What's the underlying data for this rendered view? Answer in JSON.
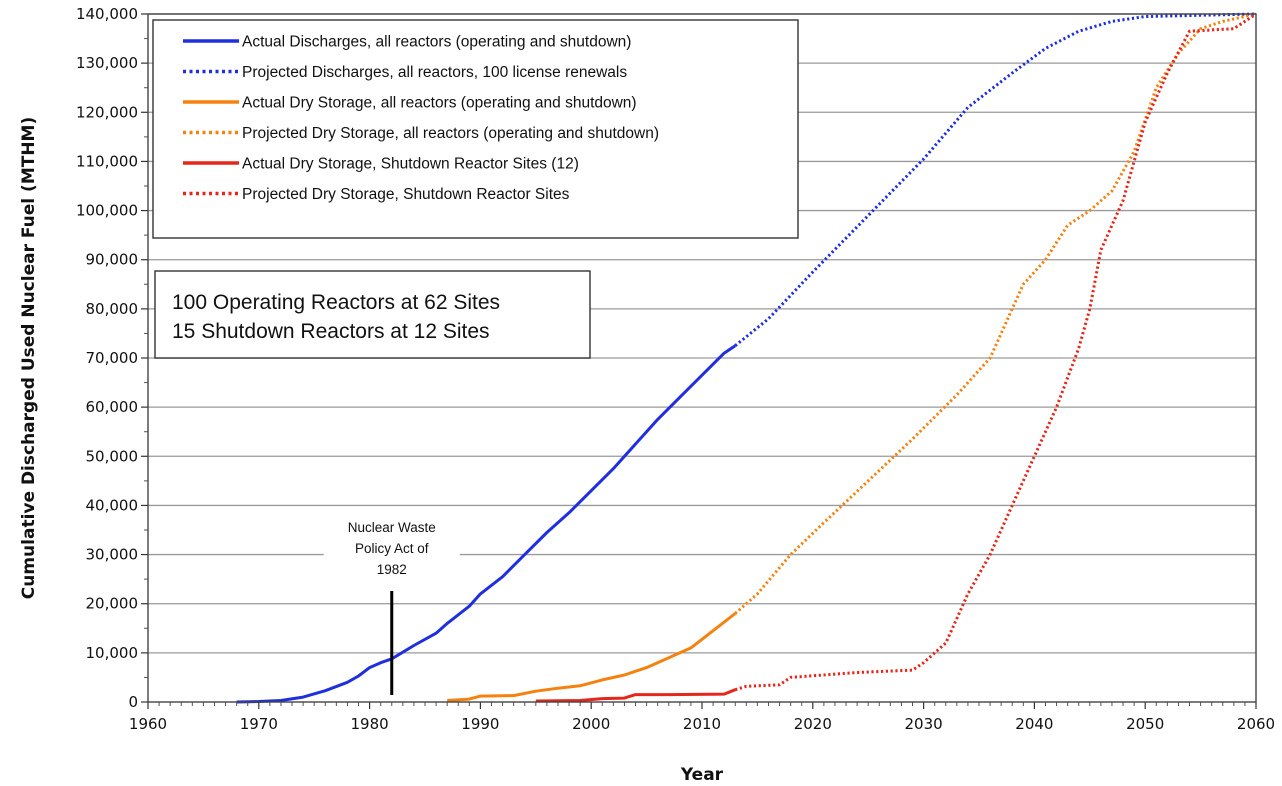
{
  "chart_data": {
    "type": "line",
    "xlabel": "Year",
    "ylabel": "Cumulative Discharged Used Nuclear Fuel (MTHM)",
    "xlim": [
      1960,
      2060
    ],
    "ylim": [
      0,
      140000
    ],
    "x_ticks": [
      "1960",
      "1970",
      "1980",
      "1990",
      "2000",
      "2010",
      "2020",
      "2030",
      "2040",
      "2050",
      "2060"
    ],
    "y_ticks": [
      "0",
      "10,000",
      "20,000",
      "30,000",
      "40,000",
      "50,000",
      "60,000",
      "70,000",
      "80,000",
      "90,000",
      "100,000",
      "110,000",
      "120,000",
      "130,000",
      "140,000"
    ],
    "grid": "horizontal",
    "legend_position": "top-left",
    "series": [
      {
        "name": "Actual Discharges, all reactors (operating and shutdown)",
        "color": "#1f2fe0",
        "style": "solid",
        "points": [
          [
            1968,
            0
          ],
          [
            1970,
            100
          ],
          [
            1972,
            300
          ],
          [
            1974,
            1000
          ],
          [
            1976,
            2300
          ],
          [
            1978,
            4000
          ],
          [
            1979,
            5300
          ],
          [
            1980,
            7000
          ],
          [
            1981,
            8000
          ],
          [
            1982,
            8800
          ],
          [
            1984,
            11500
          ],
          [
            1986,
            14000
          ],
          [
            1987,
            16000
          ],
          [
            1989,
            19500
          ],
          [
            1990,
            22000
          ],
          [
            1992,
            25500
          ],
          [
            1994,
            30000
          ],
          [
            1996,
            34500
          ],
          [
            1998,
            38500
          ],
          [
            2000,
            43000
          ],
          [
            2002,
            47500
          ],
          [
            2004,
            52500
          ],
          [
            2006,
            57500
          ],
          [
            2008,
            62000
          ],
          [
            2010,
            66500
          ],
          [
            2012,
            71000
          ],
          [
            2013,
            72500
          ]
        ]
      },
      {
        "name": "Projected Discharges, all reactors, 100 license renewals",
        "color": "#1f2fe0",
        "style": "dotted",
        "points": [
          [
            2013,
            72500
          ],
          [
            2016,
            78000
          ],
          [
            2020,
            87500
          ],
          [
            2025,
            99000
          ],
          [
            2030,
            110500
          ],
          [
            2034,
            121000
          ],
          [
            2038,
            128000
          ],
          [
            2041,
            133000
          ],
          [
            2044,
            136500
          ],
          [
            2047,
            138500
          ],
          [
            2050,
            139500
          ],
          [
            2060,
            140000
          ]
        ]
      },
      {
        "name": "Actual Dry Storage, all reactors (operating and shutdown)",
        "color": "#f5820f",
        "style": "solid",
        "points": [
          [
            1987,
            300
          ],
          [
            1989,
            600
          ],
          [
            1990,
            1200
          ],
          [
            1993,
            1300
          ],
          [
            1995,
            2200
          ],
          [
            1997,
            2800
          ],
          [
            1999,
            3300
          ],
          [
            2001,
            4500
          ],
          [
            2003,
            5500
          ],
          [
            2005,
            7000
          ],
          [
            2007,
            9000
          ],
          [
            2009,
            11000
          ],
          [
            2011,
            14500
          ],
          [
            2013,
            18000
          ]
        ]
      },
      {
        "name": "Projected Dry Storage, all reactors (operating and shutdown)",
        "color": "#f5820f",
        "style": "dotted",
        "points": [
          [
            2013,
            18000
          ],
          [
            2015,
            22000
          ],
          [
            2018,
            30000
          ],
          [
            2021,
            36500
          ],
          [
            2025,
            45000
          ],
          [
            2029,
            53500
          ],
          [
            2033,
            62500
          ],
          [
            2036,
            70000
          ],
          [
            2039,
            85000
          ],
          [
            2041,
            90000
          ],
          [
            2043,
            97000
          ],
          [
            2045,
            100000
          ],
          [
            2047,
            104000
          ],
          [
            2049,
            112000
          ],
          [
            2051,
            125000
          ],
          [
            2053,
            132000
          ],
          [
            2055,
            137000
          ],
          [
            2057,
            138500
          ],
          [
            2060,
            140000
          ]
        ]
      },
      {
        "name": "Actual Dry Storage, Shutdown Reactor Sites (12)",
        "color": "#e8251a",
        "style": "solid",
        "points": [
          [
            1995,
            200
          ],
          [
            1999,
            300
          ],
          [
            2001,
            700
          ],
          [
            2003,
            800
          ],
          [
            2004,
            1500
          ],
          [
            2007,
            1500
          ],
          [
            2012,
            1600
          ],
          [
            2013,
            2500
          ]
        ]
      },
      {
        "name": "Projected Dry Storage, Shutdown Reactor Sites",
        "color": "#e8251a",
        "style": "dotted",
        "points": [
          [
            2013,
            2500
          ],
          [
            2014,
            3200
          ],
          [
            2017,
            3500
          ],
          [
            2018,
            5000
          ],
          [
            2024,
            6000
          ],
          [
            2029,
            6500
          ],
          [
            2030,
            8000
          ],
          [
            2032,
            12000
          ],
          [
            2034,
            22000
          ],
          [
            2036,
            30000
          ],
          [
            2038,
            40000
          ],
          [
            2040,
            50000
          ],
          [
            2042,
            60000
          ],
          [
            2044,
            72000
          ],
          [
            2045,
            80000
          ],
          [
            2046,
            92000
          ],
          [
            2048,
            102000
          ],
          [
            2050,
            118000
          ],
          [
            2052,
            128000
          ],
          [
            2054,
            136500
          ],
          [
            2058,
            137000
          ],
          [
            2060,
            140000
          ]
        ]
      }
    ],
    "info_box": [
      "100 Operating Reactors at 62 Sites",
      "15 Shutdown Reactors at 12 Sites"
    ],
    "annotation": {
      "lines": [
        "Nuclear Waste",
        "Policy Act of",
        "1982"
      ],
      "x": 1982
    }
  }
}
